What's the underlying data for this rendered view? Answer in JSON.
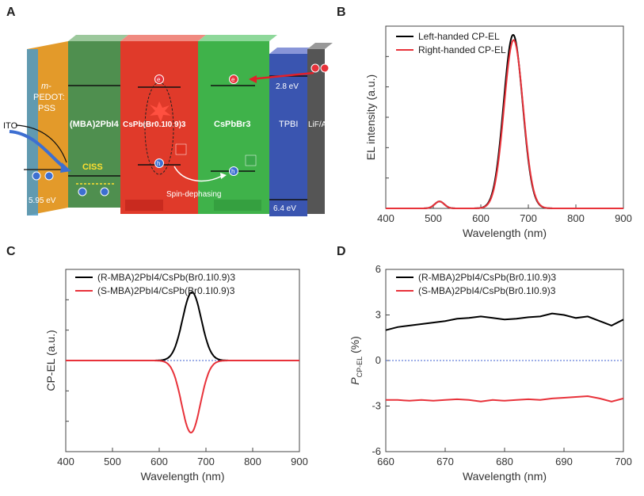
{
  "panels": {
    "a": "A",
    "b": "B",
    "c": "C",
    "d": "D"
  },
  "diagram": {
    "ito": "ITO",
    "pedot_line1": "m-",
    "pedot_line2": "PEDOT:",
    "pedot_line3": "PSS",
    "mba_layer": "(MBA)2PbI4",
    "cspb_mixed": "CsPb(Br0.1I0.9)3",
    "cspbbr3": "CsPbBr3",
    "tpbi": "TPBI",
    "lif": "LiF/Al",
    "ciss": "CISS",
    "spin_dephasing": "Spin-dephasing",
    "energy_top": "2.8 eV",
    "energy_left": "5.95 eV",
    "energy_right": "6.4 eV",
    "electron": "e",
    "hole": "h",
    "colors": {
      "pedot": "#e39a2a",
      "mba": "#4f8f4f",
      "red": "#e03a2a",
      "green": "#3fb24a",
      "tpbi": "#3a55b0",
      "lif": "#555555"
    }
  },
  "chart_data": [
    {
      "id": "B",
      "type": "line",
      "title": "",
      "xlabel": "Wavelength (nm)",
      "ylabel": "EL intensity (a.u.)",
      "xlim": [
        400,
        900
      ],
      "ylim": [
        0,
        1.05
      ],
      "xticks": [
        400,
        500,
        600,
        700,
        800,
        900
      ],
      "legend": "top-left",
      "series": [
        {
          "name": "Left-handed CP-EL",
          "color": "#000000",
          "peaks": [
            [
              668,
              1.0,
              20
            ],
            [
              513,
              0.04,
              10
            ]
          ]
        },
        {
          "name": "Right-handed CP-EL",
          "color": "#e8323a",
          "peaks": [
            [
              669,
              0.97,
              20
            ],
            [
              513,
              0.04,
              10
            ]
          ]
        }
      ]
    },
    {
      "id": "C",
      "type": "line",
      "title": "",
      "xlabel": "Wavelength (nm)",
      "ylabel": "CP-EL (a.u.)",
      "xlim": [
        400,
        900
      ],
      "ylim": [
        -1.2,
        1.2
      ],
      "xticks": [
        400,
        500,
        600,
        700,
        800,
        900
      ],
      "legend": "top-left",
      "zero_line": true,
      "series": [
        {
          "name": "(R-MBA)2PbI4/CsPb(Br0.1I0.9)3",
          "color": "#000000",
          "peaks": [
            [
              670,
              0.9,
              20
            ]
          ]
        },
        {
          "name": "(S-MBA)2PbI4/CsPb(Br0.1I0.9)3",
          "color": "#e8323a",
          "peaks": [
            [
              668,
              -0.95,
              20
            ]
          ]
        }
      ]
    },
    {
      "id": "D",
      "type": "line",
      "title": "",
      "xlabel": "Wavelength (nm)",
      "ylabel": "P_CP-EL (%)",
      "ylabel_main": "P",
      "ylabel_sub": "CP-EL",
      "ylabel_unit": "(%)",
      "xlim": [
        660,
        700
      ],
      "ylim": [
        -6,
        6
      ],
      "xticks": [
        660,
        670,
        680,
        690,
        700
      ],
      "yticks": [
        -6,
        -3,
        0,
        3,
        6
      ],
      "legend": "top-left",
      "zero_line": true,
      "series": [
        {
          "name": "(R-MBA)2PbI4/CsPb(Br0.1I0.9)3",
          "color": "#000000",
          "x": [
            660,
            662,
            664,
            666,
            668,
            670,
            672,
            674,
            676,
            678,
            680,
            682,
            684,
            686,
            688,
            690,
            692,
            694,
            696,
            698,
            700
          ],
          "y": [
            2.0,
            2.2,
            2.3,
            2.4,
            2.5,
            2.6,
            2.75,
            2.8,
            2.9,
            2.8,
            2.7,
            2.75,
            2.85,
            2.9,
            3.1,
            3.0,
            2.8,
            2.9,
            2.6,
            2.3,
            2.7
          ]
        },
        {
          "name": "(S-MBA)2PbI4/CsPb(Br0.1I0.9)3",
          "color": "#e8323a",
          "x": [
            660,
            662,
            664,
            666,
            668,
            670,
            672,
            674,
            676,
            678,
            680,
            682,
            684,
            686,
            688,
            690,
            692,
            694,
            696,
            698,
            700
          ],
          "y": [
            -2.6,
            -2.6,
            -2.65,
            -2.6,
            -2.65,
            -2.6,
            -2.55,
            -2.6,
            -2.7,
            -2.6,
            -2.65,
            -2.6,
            -2.55,
            -2.6,
            -2.5,
            -2.45,
            -2.4,
            -2.35,
            -2.5,
            -2.7,
            -2.5
          ]
        }
      ]
    }
  ]
}
